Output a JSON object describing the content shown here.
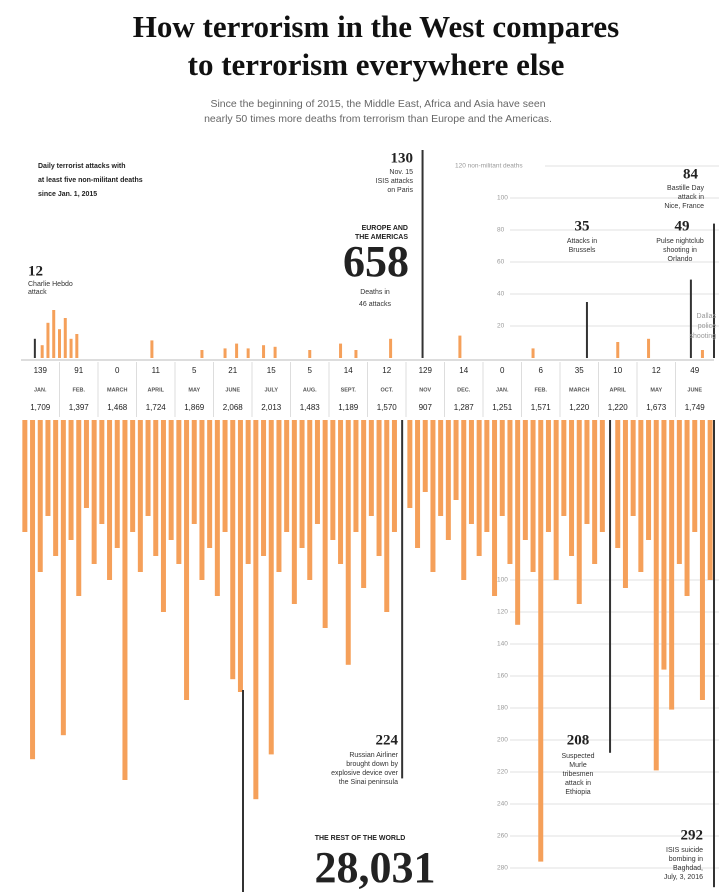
{
  "title": [
    "How terrorism in the West compares",
    "to terrorism everywhere else"
  ],
  "subtitle": [
    "Since the beginning of 2015, the Middle East, Africa and Asia have seen",
    "nearly 50 times more deaths from terrorism than Europe and the Americas."
  ],
  "panel_label": [
    "Daily terrorist attacks with",
    "at least five non-militant deaths",
    "since Jan. 1, 2015"
  ],
  "month_table": {
    "months": [
      "JAN.",
      "FEB.",
      "MARCH",
      "APRIL",
      "MAY",
      "JUNE",
      "JULY",
      "AUG.",
      "SEPT.",
      "OCT.",
      "NOV",
      "DEC.",
      "JAN.",
      "FEB.",
      "MARCH",
      "APRIL",
      "MAY",
      "JUNE"
    ],
    "west": [
      "139",
      "91",
      "0",
      "11",
      "5",
      "21",
      "15",
      "5",
      "14",
      "12",
      "129",
      "14",
      "0",
      "6",
      "35",
      "10",
      "12",
      "49"
    ],
    "rest": [
      "1,709",
      "1,397",
      "1,468",
      "1,724",
      "1,869",
      "2,068",
      "2,013",
      "1,483",
      "1,189",
      "1,570",
      "907",
      "1,287",
      "1,251",
      "1,571",
      "1,220",
      "1,220",
      "1,673",
      "1,749"
    ]
  },
  "chart_data": [
    {
      "type": "bar",
      "direction": "up",
      "color": "#f5a05a",
      "highlight_color": "#333333",
      "highlight": [
        0,
        19,
        22,
        25,
        27
      ],
      "label": [
        "EUROPE AND",
        "THE AMERICAS"
      ],
      "total": "658",
      "total_note": [
        "Deaths in",
        "46 attacks"
      ],
      "xlim": [
        0,
        18
      ],
      "ylim": [
        0,
        130
      ],
      "yticks": [
        20,
        40,
        60,
        80,
        100,
        {
          "value": 120,
          "label": "120 non-militant deaths"
        }
      ],
      "x": [
        0.36,
        0.55,
        0.7,
        0.85,
        1.0,
        1.15,
        1.3,
        1.45,
        3.4,
        4.7,
        5.3,
        5.6,
        5.9,
        6.3,
        6.6,
        7.5,
        8.3,
        8.7,
        9.6,
        10.43,
        11.4,
        13.3,
        14.7,
        15.5,
        16.3,
        17.4,
        17.7,
        18.0
      ],
      "values": [
        12,
        8,
        22,
        30,
        18,
        25,
        12,
        15,
        11,
        5,
        6,
        9,
        6,
        8,
        7,
        5,
        9,
        5,
        12,
        130,
        14,
        6,
        35,
        10,
        12,
        49,
        5,
        84
      ],
      "annotations": {
        "charlie": [
          "Charlie Hebdo",
          "attack"
        ],
        "paris": [
          "Nov. 15",
          "ISIS attacks",
          "on Paris"
        ],
        "brussels": [
          "Attacks in",
          "Brussels"
        ],
        "orlando": [
          "Pulse nightclub",
          "shooting in",
          "Orlando"
        ],
        "nice": [
          "Bastille Day",
          "attack in",
          "Nice, France"
        ],
        "dallas": [
          "Dallas",
          "police",
          "shooting"
        ]
      }
    },
    {
      "type": "bar",
      "direction": "down",
      "color": "#f5a05a",
      "highlight_color": "#333333",
      "highlight": [
        49,
        76,
        90
      ],
      "label": "THE REST OF THE WORLD",
      "total": "28,031",
      "xlim": [
        0,
        18
      ],
      "ylim": [
        0,
        295
      ],
      "yticks": [
        100,
        120,
        140,
        160,
        180,
        200,
        220,
        240,
        260,
        280
      ],
      "x": [
        0.1,
        0.3,
        0.5,
        0.7,
        0.9,
        1.1,
        1.3,
        1.5,
        1.7,
        1.9,
        2.1,
        2.3,
        2.5,
        2.7,
        2.9,
        3.1,
        3.3,
        3.5,
        3.7,
        3.9,
        4.1,
        4.3,
        4.5,
        4.7,
        4.9,
        5.1,
        5.3,
        5.5,
        5.7,
        5.9,
        6.1,
        6.3,
        6.5,
        6.7,
        6.9,
        7.1,
        7.3,
        7.5,
        7.7,
        7.9,
        8.1,
        8.3,
        8.5,
        8.7,
        8.9,
        9.1,
        9.3,
        9.5,
        9.7,
        9.9,
        10.1,
        10.3,
        10.5,
        10.7,
        10.9,
        11.1,
        11.3,
        11.5,
        11.7,
        11.9,
        12.1,
        12.3,
        12.5,
        12.7,
        12.9,
        13.1,
        13.3,
        13.5,
        13.7,
        13.9,
        14.1,
        14.3,
        14.5,
        14.7,
        14.9,
        15.1,
        15.3,
        15.5,
        15.7,
        15.9,
        16.1,
        16.3,
        16.5,
        16.7,
        16.9,
        17.1,
        17.3,
        17.5,
        17.7,
        17.9,
        18.0
      ],
      "values": [
        70,
        212,
        95,
        60,
        85,
        197,
        75,
        110,
        55,
        90,
        65,
        100,
        80,
        225,
        70,
        95,
        60,
        85,
        120,
        75,
        90,
        175,
        65,
        100,
        80,
        110,
        70,
        162,
        170,
        90,
        237,
        85,
        209,
        95,
        70,
        115,
        80,
        100,
        65,
        130,
        75,
        90,
        153,
        70,
        105,
        60,
        85,
        120,
        70,
        224,
        55,
        80,
        45,
        95,
        60,
        75,
        50,
        100,
        65,
        85,
        70,
        110,
        60,
        90,
        128,
        75,
        95,
        276,
        70,
        100,
        60,
        85,
        115,
        65,
        90,
        70,
        208,
        80,
        105,
        60,
        95,
        75,
        219,
        156,
        181,
        90,
        110,
        70,
        175,
        100,
        292
      ],
      "annotations": {
        "airliner": [
          "Russian Airliner",
          "brought down by",
          "explosive device over",
          "the Sinai peninsula"
        ],
        "murle": [
          "Suspected",
          "Murle",
          "tribesmen",
          "attack in",
          "Ethiopia"
        ],
        "baghdad": [
          "ISIS suicide",
          "bombing in",
          "Baghdad,",
          "July, 3, 2016"
        ]
      }
    }
  ]
}
